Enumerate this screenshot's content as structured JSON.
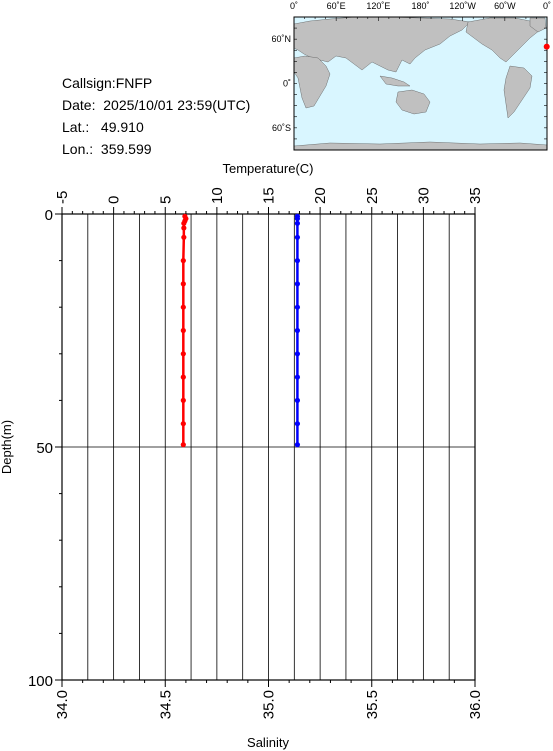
{
  "station": {
    "callsign": "Callsign:FNFP",
    "date_label": "Date:",
    "date": "2025/10/01 23:59(UTC)",
    "lat_label": "Lat.:",
    "lat": "49.910",
    "lon_label": "Lon.:",
    "lon": "359.599"
  },
  "map": {
    "top_labels": [
      "0˚",
      "60˚E",
      "120˚E",
      "180˚",
      "120˚W",
      "60˚W",
      "0˚"
    ],
    "left_labels": [
      "60˚N",
      "0˚",
      "60˚S"
    ],
    "ocean_color": "#d9f6ff",
    "land_color": "#c0c0c0",
    "marker_color": "#ff0000",
    "marker_lon": 359.599,
    "marker_lat": 49.91
  },
  "chart_data": {
    "type": "line",
    "top_axis": {
      "label": "Temperature(C)",
      "range": [
        -5,
        35
      ],
      "ticks": [
        "-5",
        "0",
        "5",
        "10",
        "15",
        "20",
        "25",
        "30",
        "35"
      ]
    },
    "bottom_axis": {
      "label": "Salinity",
      "range": [
        34.0,
        36.0
      ],
      "ticks": [
        "34.0",
        "34.5",
        "35.0",
        "35.5",
        "36.0"
      ]
    },
    "left_axis": {
      "label": "Depth(m)",
      "range": [
        0,
        100
      ],
      "ticks": [
        "0",
        "50",
        "100"
      ],
      "inverted": true
    },
    "grid": true,
    "series": [
      {
        "color": "#ff0000",
        "axis": "temperature",
        "points": [
          {
            "depth": 0.5,
            "value": 6.9
          },
          {
            "depth": 1.0,
            "value": 7.0
          },
          {
            "depth": 1.5,
            "value": 6.9
          },
          {
            "depth": 2.0,
            "value": 6.8
          },
          {
            "depth": 3,
            "value": 6.8
          },
          {
            "depth": 5,
            "value": 6.8
          },
          {
            "depth": 10,
            "value": 6.75
          },
          {
            "depth": 15,
            "value": 6.75
          },
          {
            "depth": 20,
            "value": 6.75
          },
          {
            "depth": 25,
            "value": 6.75
          },
          {
            "depth": 30,
            "value": 6.75
          },
          {
            "depth": 35,
            "value": 6.75
          },
          {
            "depth": 40,
            "value": 6.75
          },
          {
            "depth": 45,
            "value": 6.75
          },
          {
            "depth": 49.5,
            "value": 6.75
          }
        ]
      },
      {
        "color": "#0000ff",
        "axis": "salinity",
        "points": [
          {
            "depth": 0.5,
            "value": 35.14
          },
          {
            "depth": 1.0,
            "value": 35.14
          },
          {
            "depth": 2.0,
            "value": 35.14
          },
          {
            "depth": 5,
            "value": 35.14
          },
          {
            "depth": 10,
            "value": 35.14
          },
          {
            "depth": 15,
            "value": 35.14
          },
          {
            "depth": 20,
            "value": 35.14
          },
          {
            "depth": 25,
            "value": 35.14
          },
          {
            "depth": 30,
            "value": 35.14
          },
          {
            "depth": 35,
            "value": 35.14
          },
          {
            "depth": 40,
            "value": 35.14
          },
          {
            "depth": 45,
            "value": 35.14
          },
          {
            "depth": 49.5,
            "value": 35.14
          }
        ]
      }
    ]
  }
}
